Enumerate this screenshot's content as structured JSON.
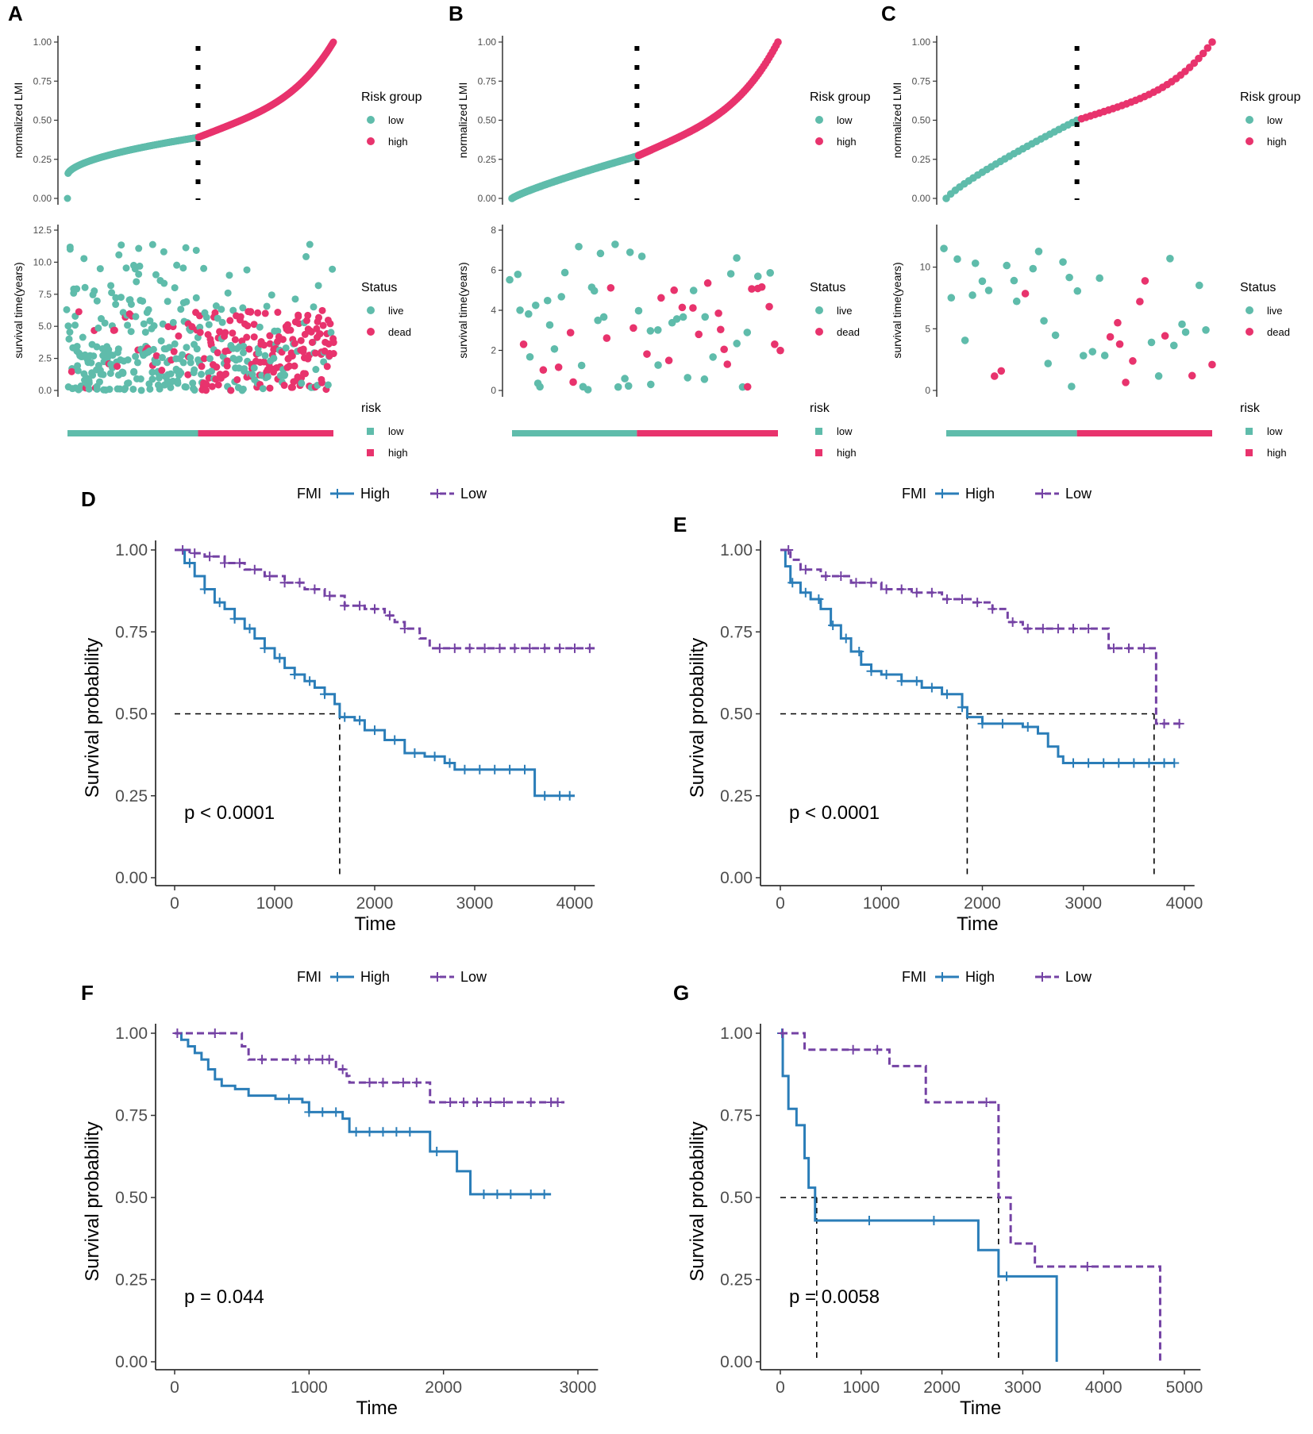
{
  "colors": {
    "low": "#5fbcab",
    "high": "#e8336d",
    "km_high": "#2a7db8",
    "km_low": "#7442a4",
    "axis": "#333333",
    "dashed": "#000000"
  },
  "chart_data": [
    {
      "id": "A",
      "label": "A",
      "type": "scatter",
      "risk": {
        "ylabel": "normalized LMI",
        "ylim": [
          0,
          1
        ],
        "yticks": [
          "0.00",
          "0.25",
          "0.50",
          "0.75",
          "1.00"
        ],
        "n": 500,
        "cutoff_index": 245,
        "cutoff_value": 0.39,
        "legend": {
          "title": "Risk group",
          "items": [
            "low",
            "high"
          ]
        }
      },
      "status": {
        "ylabel": "survival time(years)",
        "ylim": [
          0,
          12.5
        ],
        "yticks": [
          "0.0",
          "2.5",
          "5.0",
          "7.5",
          "10.0",
          "12.5"
        ],
        "legend": {
          "title": "Status",
          "items": [
            "live",
            "dead"
          ]
        }
      },
      "riskbar": {
        "legend": {
          "title": "risk",
          "items": [
            "low",
            "high"
          ]
        }
      }
    },
    {
      "id": "B",
      "label": "B",
      "type": "scatter",
      "risk": {
        "ylabel": "normalized LMI",
        "ylim": [
          0,
          1
        ],
        "yticks": [
          "0.00",
          "0.25",
          "0.50",
          "0.75",
          "1.00"
        ],
        "n": 150,
        "cutoff_index": 70,
        "cutoff_value": 0.27,
        "legend": {
          "title": "Risk group",
          "items": [
            "low",
            "high"
          ]
        }
      },
      "status": {
        "ylabel": "survival time(years)",
        "ylim": [
          0,
          8
        ],
        "yticks": [
          "0",
          "2",
          "4",
          "6",
          "8"
        ],
        "legend": {
          "title": "Status",
          "items": [
            "live",
            "dead"
          ]
        }
      },
      "riskbar": {
        "legend": {
          "title": "risk",
          "items": [
            "low",
            "high"
          ]
        }
      }
    },
    {
      "id": "C",
      "label": "C",
      "type": "scatter",
      "risk": {
        "ylabel": "normalized LMI",
        "ylim": [
          0,
          1
        ],
        "yticks": [
          "0.00",
          "0.25",
          "0.50",
          "0.75",
          "1.00"
        ],
        "n": 60,
        "cutoff_index": 29,
        "cutoff_value": 0.5,
        "legend": {
          "title": "Risk group",
          "items": [
            "low",
            "high"
          ]
        }
      },
      "status": {
        "ylabel": "survival time(years)",
        "ylim": [
          0,
          13
        ],
        "yticks": [
          "0",
          "5",
          "10"
        ],
        "legend": {
          "title": "Status",
          "items": [
            "live",
            "dead"
          ]
        }
      },
      "riskbar": {
        "legend": {
          "title": "risk",
          "items": [
            "low",
            "high"
          ]
        }
      }
    },
    {
      "id": "D",
      "label": "D",
      "type": "line",
      "legend": {
        "title": "FMI",
        "items": [
          "High",
          "Low"
        ]
      },
      "xlabel": "Time",
      "ylabel": "Survival probability",
      "xlim": [
        -100,
        4200
      ],
      "xticks": [
        0,
        1000,
        2000,
        3000,
        4000
      ],
      "ylim": [
        0,
        1
      ],
      "yticks": [
        "0.00",
        "0.25",
        "0.50",
        "0.75",
        "1.00"
      ],
      "pvalue": "p < 0.0001",
      "median_lines": [
        1650
      ],
      "series": [
        {
          "name": "High",
          "style": "solid",
          "points": [
            [
              0,
              1
            ],
            [
              100,
              0.96
            ],
            [
              200,
              0.92
            ],
            [
              300,
              0.88
            ],
            [
              400,
              0.84
            ],
            [
              500,
              0.82
            ],
            [
              600,
              0.79
            ],
            [
              700,
              0.76
            ],
            [
              800,
              0.73
            ],
            [
              900,
              0.7
            ],
            [
              1000,
              0.67
            ],
            [
              1100,
              0.64
            ],
            [
              1200,
              0.62
            ],
            [
              1300,
              0.6
            ],
            [
              1400,
              0.58
            ],
            [
              1500,
              0.56
            ],
            [
              1600,
              0.53
            ],
            [
              1650,
              0.49
            ],
            [
              1800,
              0.48
            ],
            [
              1900,
              0.45
            ],
            [
              2100,
              0.42
            ],
            [
              2300,
              0.38
            ],
            [
              2500,
              0.37
            ],
            [
              2700,
              0.35
            ],
            [
              2800,
              0.33
            ],
            [
              3550,
              0.33
            ],
            [
              3600,
              0.25
            ],
            [
              4000,
              0.25
            ]
          ],
          "censor": [
            150,
            300,
            450,
            600,
            750,
            900,
            1050,
            1200,
            1350,
            1500,
            1700,
            1850,
            2000,
            2200,
            2400,
            2600,
            2750,
            2900,
            3050,
            3200,
            3350,
            3500,
            3700,
            3850,
            3950
          ]
        },
        {
          "name": "Low",
          "style": "dashed",
          "points": [
            [
              0,
              1
            ],
            [
              150,
              0.99
            ],
            [
              300,
              0.98
            ],
            [
              500,
              0.96
            ],
            [
              700,
              0.94
            ],
            [
              900,
              0.92
            ],
            [
              1100,
              0.9
            ],
            [
              1300,
              0.88
            ],
            [
              1500,
              0.86
            ],
            [
              1700,
              0.83
            ],
            [
              1900,
              0.82
            ],
            [
              2100,
              0.8
            ],
            [
              2200,
              0.78
            ],
            [
              2300,
              0.76
            ],
            [
              2450,
              0.73
            ],
            [
              2550,
              0.7
            ],
            [
              4200,
              0.7
            ]
          ],
          "censor": [
            80,
            200,
            350,
            500,
            650,
            800,
            950,
            1100,
            1250,
            1400,
            1550,
            1700,
            1850,
            2000,
            2150,
            2300,
            2650,
            2800,
            2950,
            3100,
            3250,
            3400,
            3550,
            3700,
            3850,
            4000,
            4150
          ]
        }
      ]
    },
    {
      "id": "E",
      "label": "E",
      "type": "line",
      "legend": {
        "title": "FMI",
        "items": [
          "High",
          "Low"
        ]
      },
      "xlabel": "Time",
      "ylabel": "Survival probability",
      "xlim": [
        -100,
        4100
      ],
      "xticks": [
        0,
        1000,
        2000,
        3000,
        4000
      ],
      "ylim": [
        0,
        1
      ],
      "yticks": [
        "0.00",
        "0.25",
        "0.50",
        "0.75",
        "1.00"
      ],
      "pvalue": "p < 0.0001",
      "median_lines": [
        1850,
        3700
      ],
      "series": [
        {
          "name": "High",
          "style": "solid",
          "points": [
            [
              0,
              1
            ],
            [
              50,
              0.95
            ],
            [
              100,
              0.9
            ],
            [
              200,
              0.87
            ],
            [
              300,
              0.85
            ],
            [
              400,
              0.82
            ],
            [
              500,
              0.77
            ],
            [
              600,
              0.73
            ],
            [
              700,
              0.69
            ],
            [
              800,
              0.65
            ],
            [
              900,
              0.63
            ],
            [
              1000,
              0.62
            ],
            [
              1200,
              0.6
            ],
            [
              1400,
              0.58
            ],
            [
              1600,
              0.56
            ],
            [
              1800,
              0.52
            ],
            [
              1850,
              0.49
            ],
            [
              2000,
              0.47
            ],
            [
              2400,
              0.46
            ],
            [
              2550,
              0.44
            ],
            [
              2650,
              0.4
            ],
            [
              2750,
              0.37
            ],
            [
              2800,
              0.35
            ],
            [
              3900,
              0.35
            ]
          ],
          "censor": [
            120,
            250,
            380,
            520,
            650,
            780,
            900,
            1050,
            1200,
            1350,
            1500,
            1650,
            1800,
            2000,
            2200,
            2450,
            2900,
            3050,
            3200,
            3350,
            3500,
            3650,
            3800,
            3900
          ]
        },
        {
          "name": "Low",
          "style": "dashed",
          "points": [
            [
              0,
              1
            ],
            [
              100,
              0.97
            ],
            [
              200,
              0.94
            ],
            [
              400,
              0.92
            ],
            [
              700,
              0.9
            ],
            [
              1000,
              0.88
            ],
            [
              1300,
              0.87
            ],
            [
              1600,
              0.85
            ],
            [
              1900,
              0.84
            ],
            [
              2100,
              0.82
            ],
            [
              2250,
              0.78
            ],
            [
              2400,
              0.76
            ],
            [
              3200,
              0.76
            ],
            [
              3250,
              0.7
            ],
            [
              3700,
              0.7
            ],
            [
              3720,
              0.47
            ],
            [
              4000,
              0.47
            ]
          ],
          "censor": [
            80,
            250,
            450,
            600,
            750,
            900,
            1050,
            1200,
            1350,
            1500,
            1650,
            1800,
            1950,
            2100,
            2300,
            2450,
            2600,
            2750,
            2900,
            3050,
            3300,
            3450,
            3600,
            3800,
            3950
          ]
        }
      ]
    },
    {
      "id": "F",
      "label": "F",
      "type": "line",
      "legend": {
        "title": "FMI",
        "items": [
          "High",
          "Low"
        ]
      },
      "xlabel": "Time",
      "ylabel": "Survival probability",
      "xlim": [
        -150,
        3150
      ],
      "xticks": [
        0,
        1000,
        2000,
        3000
      ],
      "ylim": [
        0,
        1
      ],
      "yticks": [
        "0.00",
        "0.25",
        "0.50",
        "0.75",
        "1.00"
      ],
      "pvalue": "p = 0.044",
      "median_lines": [],
      "series": [
        {
          "name": "High",
          "style": "solid",
          "points": [
            [
              0,
              1
            ],
            [
              50,
              0.98
            ],
            [
              100,
              0.96
            ],
            [
              150,
              0.94
            ],
            [
              200,
              0.92
            ],
            [
              250,
              0.89
            ],
            [
              300,
              0.86
            ],
            [
              350,
              0.84
            ],
            [
              450,
              0.83
            ],
            [
              550,
              0.81
            ],
            [
              750,
              0.8
            ],
            [
              950,
              0.79
            ],
            [
              1000,
              0.76
            ],
            [
              1250,
              0.74
            ],
            [
              1300,
              0.7
            ],
            [
              1880,
              0.7
            ],
            [
              1900,
              0.64
            ],
            [
              2100,
              0.58
            ],
            [
              2200,
              0.51
            ],
            [
              2800,
              0.51
            ]
          ],
          "censor": [
            850,
            1000,
            1100,
            1200,
            1350,
            1450,
            1550,
            1650,
            1750,
            1950,
            2300,
            2400,
            2500,
            2650,
            2750
          ]
        },
        {
          "name": "Low",
          "style": "dashed",
          "points": [
            [
              0,
              1
            ],
            [
              480,
              1
            ],
            [
              500,
              0.96
            ],
            [
              550,
              0.92
            ],
            [
              1150,
              0.92
            ],
            [
              1200,
              0.89
            ],
            [
              1280,
              0.87
            ],
            [
              1300,
              0.85
            ],
            [
              1850,
              0.85
            ],
            [
              1900,
              0.79
            ],
            [
              2900,
              0.79
            ]
          ],
          "censor": [
            20,
            300,
            650,
            900,
            1000,
            1100,
            1150,
            1250,
            1450,
            1550,
            1700,
            1800,
            2050,
            2150,
            2250,
            2350,
            2450,
            2650,
            2800,
            2850
          ]
        }
      ]
    },
    {
      "id": "G",
      "label": "G",
      "type": "line",
      "legend": {
        "title": "FMI",
        "items": [
          "High",
          "Low"
        ]
      },
      "xlabel": "Time",
      "ylabel": "Survival probability",
      "xlim": [
        -100,
        5200
      ],
      "xticks": [
        0,
        1000,
        2000,
        3000,
        4000,
        5000
      ],
      "ylim": [
        0,
        1
      ],
      "yticks": [
        "0.00",
        "0.25",
        "0.50",
        "0.75",
        "1.00"
      ],
      "pvalue": "p = 0.0058",
      "median_lines": [
        450,
        2700
      ],
      "series": [
        {
          "name": "High",
          "style": "solid",
          "points": [
            [
              0,
              1
            ],
            [
              30,
              0.87
            ],
            [
              80,
              0.87
            ],
            [
              100,
              0.77
            ],
            [
              200,
              0.72
            ],
            [
              300,
              0.62
            ],
            [
              350,
              0.53
            ],
            [
              430,
              0.43
            ],
            [
              2450,
              0.43
            ],
            [
              2450,
              0.34
            ],
            [
              2700,
              0.26
            ],
            [
              3420,
              0.26
            ],
            [
              3420,
              0
            ]
          ],
          "censor": [
            20,
            1100,
            1900,
            2800
          ]
        },
        {
          "name": "Low",
          "style": "dashed",
          "points": [
            [
              0,
              1
            ],
            [
              300,
              0.95
            ],
            [
              1350,
              0.95
            ],
            [
              1350,
              0.9
            ],
            [
              1800,
              0.9
            ],
            [
              1800,
              0.79
            ],
            [
              2700,
              0.79
            ],
            [
              2700,
              0.5
            ],
            [
              2850,
              0.43
            ],
            [
              2850,
              0.36
            ],
            [
              3150,
              0.36
            ],
            [
              3150,
              0.29
            ],
            [
              4700,
              0.29
            ],
            [
              4700,
              0
            ]
          ],
          "censor": [
            30,
            900,
            1200,
            2550,
            3800
          ]
        }
      ]
    }
  ]
}
